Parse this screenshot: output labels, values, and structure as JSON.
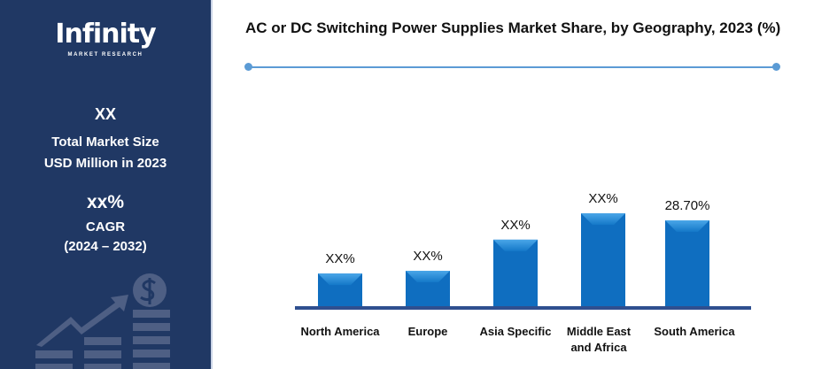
{
  "sidebar": {
    "logo": {
      "name": "Infinity",
      "tagline": "MARKET RESEARCH"
    },
    "market_size_value": "XX",
    "market_size_label_1": "Total Market Size",
    "market_size_label_2": "USD Million in 2023",
    "cagr_value": "xx%",
    "cagr_label": "CAGR",
    "cagr_period": "(2024 – 2032)",
    "icon": "growth-chart-dollar-icon"
  },
  "colors": {
    "sidebar": "#203864",
    "bar": "#0f6ec0",
    "bar_top": "#3d9be0",
    "axis": "#2f4f8f",
    "accent_line": "#5b9bd5"
  },
  "chart_data": {
    "type": "bar",
    "title": "AC or DC Switching Power Supplies Market Share, by Geography, 2023 (%)",
    "categories": [
      "North America",
      "Europe",
      "Asia Specific",
      "Middle East and Africa",
      "South America"
    ],
    "category_lines": [
      [
        "North America"
      ],
      [
        "Europe"
      ],
      [
        "Asia Specific"
      ],
      [
        "Middle East",
        "and Africa"
      ],
      [
        "South America"
      ]
    ],
    "values": [
      11.1,
      12.0,
      22.3,
      31.0,
      28.7
    ],
    "data_labels": [
      "XX%",
      "XX%",
      "XX%",
      "XX%",
      "28.70%"
    ],
    "xlabel": "",
    "ylabel": "",
    "ylim": [
      0,
      31.5
    ],
    "grid": false,
    "legend": "none"
  }
}
